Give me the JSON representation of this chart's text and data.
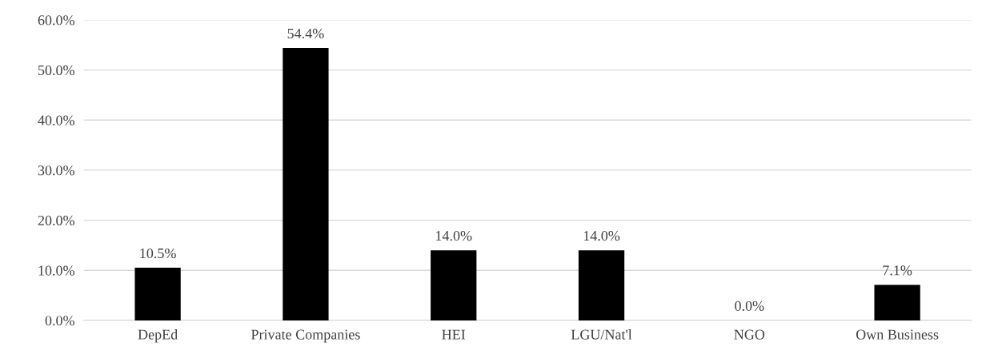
{
  "chart_data": {
    "type": "bar",
    "categories": [
      "DepEd",
      "Private Companies",
      "HEI",
      "LGU/Nat'l",
      "NGO",
      "Own Business"
    ],
    "values": [
      10.5,
      54.4,
      14.0,
      14.0,
      0.0,
      7.1
    ],
    "value_labels": [
      "10.5%",
      "54.4%",
      "14.0%",
      "14.0%",
      "0.0%",
      "7.1%"
    ],
    "color": "#000000",
    "ylim": [
      0,
      60
    ],
    "yticks": [
      {
        "value": 0,
        "label": "0.0%"
      },
      {
        "value": 10,
        "label": "10.0%"
      },
      {
        "value": 20,
        "label": "20.0%"
      },
      {
        "value": 30,
        "label": "30.0%"
      },
      {
        "value": 40,
        "label": "40.0%"
      },
      {
        "value": 50,
        "label": "50.0%"
      },
      {
        "value": 60,
        "label": "60.0%"
      }
    ],
    "grid": "y"
  }
}
